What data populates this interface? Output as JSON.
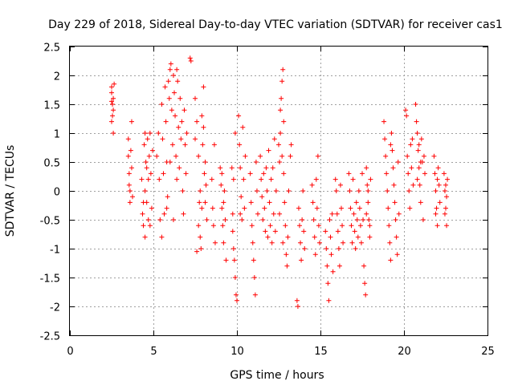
{
  "chart_data": {
    "type": "scatter",
    "title": "Day 229 of 2018, Sidereal Day-to-day VTEC variation (SDTVAR) for receiver cas1",
    "xlabel": "GPS time / hours",
    "ylabel": "SDTVAR / TECUs",
    "xlim": [
      0,
      25
    ],
    "ylim": [
      -2.5,
      2.5
    ],
    "xticks": [
      0,
      5,
      10,
      15,
      20,
      25
    ],
    "yticks": [
      -2.5,
      -2,
      -1.5,
      -1,
      -0.5,
      0,
      0.5,
      1,
      1.5,
      2,
      2.5
    ],
    "grid": true,
    "marker": "+",
    "color": "#ff0000",
    "series": [
      {
        "name": "SDTVAR",
        "points": [
          [
            2.5,
            1.8
          ],
          [
            2.5,
            1.7
          ],
          [
            2.55,
            1.5
          ],
          [
            2.55,
            1.3
          ],
          [
            2.5,
            1.2
          ],
          [
            2.6,
            1.6
          ],
          [
            2.6,
            1.4
          ],
          [
            2.65,
            1.85
          ],
          [
            2.6,
            1.0
          ],
          [
            2.5,
            1.55
          ],
          [
            3.5,
            0.9
          ],
          [
            3.5,
            0.6
          ],
          [
            3.55,
            0.3
          ],
          [
            3.6,
            0.0
          ],
          [
            3.6,
            -0.2
          ],
          [
            3.65,
            0.7
          ],
          [
            3.7,
            1.2
          ],
          [
            3.7,
            0.4
          ],
          [
            3.75,
            -0.1
          ],
          [
            3.55,
            0.1
          ],
          [
            4.3,
            0.2
          ],
          [
            4.35,
            -0.4
          ],
          [
            4.4,
            -0.6
          ],
          [
            4.45,
            0.8
          ],
          [
            4.5,
            1.0
          ],
          [
            4.5,
            -0.8
          ],
          [
            4.55,
            0.5
          ],
          [
            4.6,
            -0.2
          ],
          [
            4.65,
            0.9
          ],
          [
            4.7,
            -0.5
          ],
          [
            4.75,
            0.6
          ],
          [
            4.8,
            1.0
          ],
          [
            4.85,
            0.3
          ],
          [
            4.9,
            -0.3
          ],
          [
            4.95,
            0.7
          ],
          [
            4.4,
            -0.2
          ],
          [
            4.6,
            0.4
          ],
          [
            4.8,
            -0.6
          ],
          [
            4.5,
            0.0
          ],
          [
            4.7,
            0.2
          ],
          [
            5.2,
            0.6
          ],
          [
            5.3,
            1.0
          ],
          [
            5.35,
            0.2
          ],
          [
            5.4,
            -0.5
          ],
          [
            5.5,
            1.5
          ],
          [
            5.55,
            0.9
          ],
          [
            5.6,
            0.3
          ],
          [
            5.65,
            -0.4
          ],
          [
            5.7,
            1.8
          ],
          [
            5.75,
            1.2
          ],
          [
            5.8,
            0.5
          ],
          [
            5.85,
            -0.1
          ],
          [
            5.9,
            1.9
          ],
          [
            5.95,
            1.6
          ],
          [
            6.0,
            2.1
          ],
          [
            6.05,
            2.2
          ],
          [
            6.1,
            1.4
          ],
          [
            6.15,
            0.8
          ],
          [
            6.2,
            2.0
          ],
          [
            6.25,
            1.7
          ],
          [
            6.3,
            1.3
          ],
          [
            6.35,
            0.6
          ],
          [
            6.4,
            2.1
          ],
          [
            6.45,
            1.9
          ],
          [
            6.5,
            1.1
          ],
          [
            6.55,
            0.4
          ],
          [
            6.6,
            1.6
          ],
          [
            6.65,
            0.9
          ],
          [
            6.7,
            1.2
          ],
          [
            6.75,
            0.0
          ],
          [
            6.8,
            -0.4
          ],
          [
            6.85,
            1.4
          ],
          [
            6.9,
            0.8
          ],
          [
            6.95,
            0.3
          ],
          [
            7.0,
            1.0
          ],
          [
            6.2,
            -0.5
          ],
          [
            6.0,
            0.5
          ],
          [
            5.5,
            -0.8
          ],
          [
            5.8,
            -0.3
          ],
          [
            6.4,
            0.2
          ],
          [
            7.2,
            2.3
          ],
          [
            7.25,
            2.25
          ],
          [
            7.5,
            1.6
          ],
          [
            7.6,
            1.2
          ],
          [
            7.7,
            0.6
          ],
          [
            7.75,
            -0.2
          ],
          [
            7.8,
            -0.8
          ],
          [
            7.85,
            -1.0
          ],
          [
            7.9,
            1.3
          ],
          [
            7.95,
            0.8
          ],
          [
            8.0,
            1.8
          ],
          [
            8.05,
            0.3
          ],
          [
            8.1,
            0.5
          ],
          [
            8.15,
            0.1
          ],
          [
            8.2,
            -0.5
          ],
          [
            7.7,
            -0.6
          ],
          [
            7.6,
            -1.05
          ],
          [
            7.9,
            -0.3
          ],
          [
            8.0,
            1.1
          ],
          [
            7.5,
            0.9
          ],
          [
            7.8,
            0.0
          ],
          [
            8.1,
            -0.2
          ],
          [
            8.5,
            0.2
          ],
          [
            8.55,
            -0.3
          ],
          [
            8.6,
            -0.6
          ],
          [
            8.65,
            0.8
          ],
          [
            8.7,
            -0.9
          ],
          [
            9.0,
            0.4
          ],
          [
            9.05,
            0.1
          ],
          [
            9.1,
            -0.3
          ],
          [
            9.15,
            -0.6
          ],
          [
            9.2,
            -0.9
          ],
          [
            9.25,
            0.0
          ],
          [
            9.3,
            -0.5
          ],
          [
            9.35,
            -1.2
          ],
          [
            9.1,
            0.3
          ],
          [
            9.2,
            -0.2
          ],
          [
            9.7,
            0.4
          ],
          [
            9.75,
            -0.4
          ],
          [
            9.8,
            -1.0
          ],
          [
            9.85,
            -1.2
          ],
          [
            9.9,
            -1.5
          ],
          [
            9.95,
            -1.8
          ],
          [
            10.0,
            -1.9
          ],
          [
            9.9,
            1.0
          ],
          [
            9.8,
            0.2
          ],
          [
            9.75,
            -0.7
          ],
          [
            10.1,
            1.3
          ],
          [
            10.15,
            0.8
          ],
          [
            10.2,
            0.4
          ],
          [
            10.25,
            -0.1
          ],
          [
            10.3,
            -0.5
          ],
          [
            10.35,
            1.1
          ],
          [
            10.4,
            0.2
          ],
          [
            10.45,
            -0.3
          ],
          [
            10.5,
            0.6
          ],
          [
            10.2,
            -0.4
          ],
          [
            10.8,
            0.3
          ],
          [
            10.85,
            -0.2
          ],
          [
            10.9,
            -0.6
          ],
          [
            10.95,
            -0.9
          ],
          [
            11.0,
            -1.2
          ],
          [
            11.05,
            -1.5
          ],
          [
            11.1,
            -1.8
          ],
          [
            11.15,
            0.5
          ],
          [
            11.2,
            0.0
          ],
          [
            11.25,
            -0.4
          ],
          [
            11.4,
            0.6
          ],
          [
            11.45,
            0.2
          ],
          [
            11.5,
            -0.1
          ],
          [
            11.55,
            -0.5
          ],
          [
            11.6,
            0.3
          ],
          [
            11.65,
            -0.3
          ],
          [
            11.7,
            -0.7
          ],
          [
            11.75,
            0.4
          ],
          [
            11.8,
            0.0
          ],
          [
            11.85,
            -0.8
          ],
          [
            11.9,
            0.7
          ],
          [
            11.95,
            -0.2
          ],
          [
            12.0,
            -0.6
          ],
          [
            12.05,
            0.2
          ],
          [
            12.1,
            -0.9
          ],
          [
            12.15,
            0.4
          ],
          [
            12.2,
            -0.4
          ],
          [
            12.25,
            0.9
          ],
          [
            12.3,
            -0.7
          ],
          [
            12.35,
            0.0
          ],
          [
            12.5,
            0.8
          ],
          [
            12.55,
            0.5
          ],
          [
            12.6,
            1.4
          ],
          [
            12.65,
            1.6
          ],
          [
            12.7,
            1.9
          ],
          [
            12.75,
            2.1
          ],
          [
            12.8,
            0.3
          ],
          [
            12.85,
            -0.2
          ],
          [
            12.9,
            -0.6
          ],
          [
            12.95,
            -1.1
          ],
          [
            13.0,
            -1.3
          ],
          [
            13.05,
            -0.8
          ],
          [
            13.1,
            0.0
          ],
          [
            13.2,
            0.6
          ],
          [
            13.25,
            0.8
          ],
          [
            12.6,
            1.0
          ],
          [
            12.7,
            0.6
          ],
          [
            12.8,
            1.2
          ],
          [
            12.55,
            -0.4
          ],
          [
            12.75,
            -0.9
          ],
          [
            13.6,
            -1.9
          ],
          [
            13.65,
            -2.0
          ],
          [
            13.7,
            -0.3
          ],
          [
            13.75,
            -0.6
          ],
          [
            13.8,
            -0.9
          ],
          [
            13.85,
            -1.2
          ],
          [
            13.9,
            -0.5
          ],
          [
            13.95,
            0.0
          ],
          [
            14.0,
            -0.7
          ],
          [
            14.05,
            -1.0
          ],
          [
            14.5,
            0.1
          ],
          [
            14.55,
            -0.2
          ],
          [
            14.6,
            -0.5
          ],
          [
            14.65,
            -0.8
          ],
          [
            14.7,
            -1.1
          ],
          [
            14.75,
            0.2
          ],
          [
            14.8,
            -0.3
          ],
          [
            14.85,
            0.6
          ],
          [
            14.9,
            -0.6
          ],
          [
            14.95,
            -0.9
          ],
          [
            15.3,
            -0.7
          ],
          [
            15.35,
            -1.0
          ],
          [
            15.4,
            -1.3
          ],
          [
            15.45,
            -1.6
          ],
          [
            15.5,
            -1.9
          ],
          [
            15.55,
            -0.5
          ],
          [
            15.6,
            -0.8
          ],
          [
            15.65,
            -1.1
          ],
          [
            15.7,
            -0.4
          ],
          [
            15.75,
            -1.4
          ],
          [
            15.9,
            0.2
          ],
          [
            15.95,
            0.0
          ],
          [
            16.0,
            -0.4
          ],
          [
            16.05,
            -0.7
          ],
          [
            16.1,
            -1.0
          ],
          [
            16.15,
            -1.3
          ],
          [
            16.2,
            0.1
          ],
          [
            16.25,
            -0.3
          ],
          [
            16.3,
            -0.6
          ],
          [
            16.35,
            -0.9
          ],
          [
            16.7,
            0.3
          ],
          [
            16.75,
            0.0
          ],
          [
            16.8,
            -0.3
          ],
          [
            16.85,
            -0.6
          ],
          [
            16.9,
            -0.9
          ],
          [
            16.95,
            0.2
          ],
          [
            17.0,
            -0.4
          ],
          [
            17.05,
            -0.7
          ],
          [
            17.1,
            -1.0
          ],
          [
            17.15,
            -0.2
          ],
          [
            17.2,
            -0.5
          ],
          [
            17.25,
            -0.8
          ],
          [
            17.3,
            0.0
          ],
          [
            17.35,
            -0.3
          ],
          [
            17.4,
            -0.6
          ],
          [
            17.45,
            -0.9
          ],
          [
            17.5,
            0.3
          ],
          [
            17.55,
            -0.5
          ],
          [
            17.6,
            -1.3
          ],
          [
            17.65,
            -1.6
          ],
          [
            17.7,
            -1.8
          ],
          [
            17.75,
            0.4
          ],
          [
            17.8,
            0.1
          ],
          [
            17.85,
            -0.2
          ],
          [
            17.9,
            -0.5
          ],
          [
            17.95,
            -0.8
          ],
          [
            18.0,
            0.2
          ],
          [
            17.75,
            -0.4
          ],
          [
            17.85,
            0.0
          ],
          [
            17.95,
            -0.6
          ],
          [
            18.8,
            1.2
          ],
          [
            18.85,
            0.9
          ],
          [
            18.9,
            0.6
          ],
          [
            18.95,
            0.3
          ],
          [
            19.0,
            0.0
          ],
          [
            19.05,
            -0.3
          ],
          [
            19.1,
            -0.6
          ],
          [
            19.15,
            -0.9
          ],
          [
            19.2,
            -1.2
          ],
          [
            19.25,
            1.0
          ],
          [
            19.3,
            0.7
          ],
          [
            19.35,
            0.4
          ],
          [
            19.4,
            0.1
          ],
          [
            19.45,
            -0.2
          ],
          [
            19.5,
            -0.5
          ],
          [
            19.55,
            -0.8
          ],
          [
            19.6,
            -1.1
          ],
          [
            19.65,
            0.5
          ],
          [
            19.7,
            -0.4
          ],
          [
            19.2,
            0.8
          ],
          [
            20.1,
            1.4
          ],
          [
            20.15,
            1.3
          ],
          [
            20.2,
            0.6
          ],
          [
            20.25,
            0.3
          ],
          [
            20.3,
            0.0
          ],
          [
            20.35,
            -0.3
          ],
          [
            20.4,
            0.8
          ],
          [
            20.45,
            0.4
          ],
          [
            20.5,
            0.9
          ],
          [
            20.55,
            0.1
          ],
          [
            20.7,
            1.5
          ],
          [
            20.75,
            1.2
          ],
          [
            20.8,
            1.0
          ],
          [
            20.85,
            0.7
          ],
          [
            20.9,
            0.4
          ],
          [
            20.95,
            0.1
          ],
          [
            21.0,
            -0.2
          ],
          [
            21.05,
            0.9
          ],
          [
            21.1,
            0.5
          ],
          [
            21.15,
            -0.5
          ],
          [
            21.2,
            0.6
          ],
          [
            21.25,
            0.3
          ],
          [
            20.8,
            0.2
          ],
          [
            20.9,
            0.8
          ],
          [
            21.0,
            0.5
          ],
          [
            21.8,
            0.6
          ],
          [
            21.85,
            0.3
          ],
          [
            21.9,
            0.0
          ],
          [
            21.95,
            -0.3
          ],
          [
            22.0,
            -0.6
          ],
          [
            22.05,
            0.4
          ],
          [
            22.1,
            0.1
          ],
          [
            22.15,
            -0.2
          ],
          [
            21.9,
            -0.4
          ],
          [
            22.0,
            0.2
          ],
          [
            22.4,
            0.3
          ],
          [
            22.45,
            0.0
          ],
          [
            22.5,
            -0.3
          ],
          [
            22.55,
            -0.6
          ],
          [
            22.6,
            0.2
          ],
          [
            22.45,
            -0.4
          ],
          [
            22.5,
            0.1
          ],
          [
            22.55,
            -0.1
          ]
        ]
      }
    ]
  }
}
